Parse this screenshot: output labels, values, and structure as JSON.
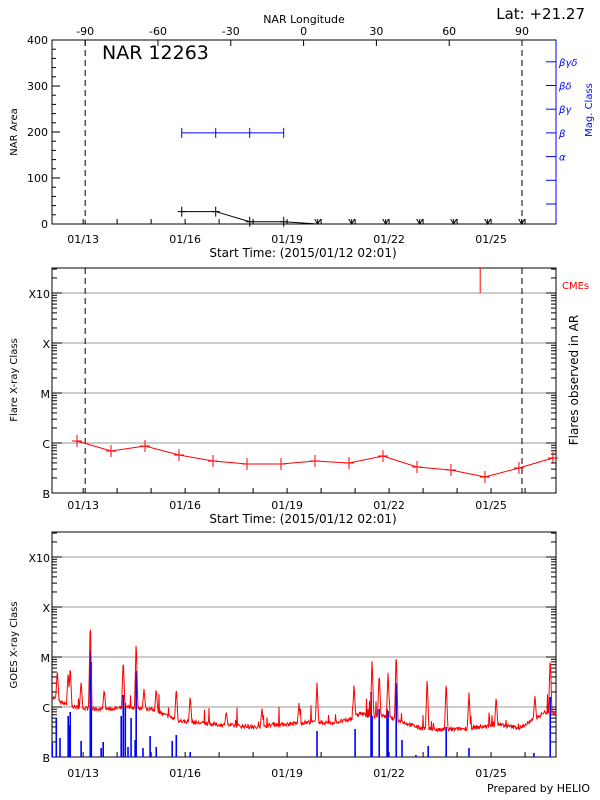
{
  "chart_data": [
    {
      "type": "line",
      "title": "NAR 12263",
      "lat_label": "Lat: +21.27",
      "top_axis_title": "NAR Longitude",
      "longitude_ticks": [
        "-90",
        "-60",
        "-30",
        "0",
        "30",
        "60",
        "90"
      ],
      "longitude_values": [
        -90,
        -60,
        -30,
        0,
        30,
        60,
        90
      ],
      "xlabel": "Start Time: (2015/01/12 02:01)",
      "x_tick_labels": [
        "01/13",
        "01/16",
        "01/19",
        "01/22",
        "01/25"
      ],
      "x_tick_days": [
        13,
        16,
        19,
        22,
        25
      ],
      "xlim_days": [
        12.084,
        26.91
      ],
      "limb_days": [
        13.06,
        25.91
      ],
      "ylabel": "NAR Area",
      "ylim": [
        0,
        400
      ],
      "y_tick_labels": [
        "0",
        "100",
        "200",
        "300",
        "400"
      ],
      "y_tick_values": [
        0,
        100,
        200,
        300,
        400
      ],
      "right_ylabel": "Mag. Class",
      "mag_classes": [
        "α",
        "β",
        "βγ",
        "βδ",
        "βγδ"
      ],
      "area_series": {
        "name": "NAR Area",
        "x_days": [
          15.9,
          16.9,
          17.9,
          18.9,
          19.9,
          20.9,
          21.9,
          22.9,
          23.9,
          24.9,
          25.9
        ],
        "values": [
          27,
          27,
          5,
          5,
          0,
          0,
          0,
          0,
          0,
          0,
          0
        ]
      },
      "mag_series": {
        "name": "Mag. Class",
        "x_days": [
          15.9,
          16.9,
          17.9,
          18.9
        ],
        "values": [
          "β",
          "β",
          "β",
          "β"
        ]
      },
      "colors": {
        "area": "#000000",
        "mag": "#0000ff"
      }
    },
    {
      "type": "line",
      "xlabel": "Start Time: (2015/01/12 02:01)",
      "ylabel": "Flare X-ray Class",
      "right_ylabel": "Flares observed in AR",
      "cme_label": "CMEs",
      "y_tick_labels": [
        "B",
        "C",
        "M",
        "X",
        "X10"
      ],
      "y_tick_log_flux": [
        -7,
        -6,
        -5,
        -4,
        -3
      ],
      "ylim_log_flux": [
        -7,
        -2.5
      ],
      "x_tick_labels": [
        "01/13",
        "01/16",
        "01/19",
        "01/22",
        "01/25"
      ],
      "flare_series": {
        "name": "Flare X-ray class",
        "x_days": [
          12.82,
          13.82,
          14.82,
          15.82,
          16.82,
          17.82,
          18.82,
          19.82,
          20.82,
          21.82,
          22.82,
          23.82,
          24.82,
          25.82,
          26.82
        ],
        "log_flux": [
          -5.96,
          -6.16,
          -6.06,
          -6.24,
          -6.36,
          -6.42,
          -6.42,
          -6.36,
          -6.4,
          -6.26,
          -6.48,
          -6.54,
          -6.68,
          -6.5,
          -6.3
        ]
      },
      "cme_days": [
        24.68
      ],
      "colors": {
        "flares": "#ff0000",
        "cme": "#ff0000",
        "grid": "#999999"
      }
    },
    {
      "type": "line",
      "ylabel": "GOES X-ray Class",
      "y_tick_labels": [
        "B",
        "C",
        "M",
        "X",
        "X10"
      ],
      "y_tick_log_flux": [
        -7,
        -6,
        -5,
        -4,
        -3
      ],
      "ylim_log_flux": [
        -7,
        -2.5
      ],
      "x_tick_labels": [
        "01/13",
        "01/16",
        "01/19",
        "01/22",
        "01/25"
      ],
      "goes_baseline": {
        "x_days": [
          12.09,
          12.32,
          12.76,
          13.21,
          13.79,
          14.38,
          14.97,
          15.41,
          15.85,
          16.44,
          17.03,
          17.62,
          18.21,
          18.5,
          19.09,
          19.68,
          20.26,
          20.85,
          21.15,
          21.44,
          21.74,
          22.32,
          22.91,
          23.5,
          24.09,
          24.68,
          25.26,
          25.85,
          26.29,
          26.59,
          26.91
        ],
        "log_flux": [
          -5.8,
          -5.9,
          -6.0,
          -6.04,
          -6.04,
          -6.0,
          -6.04,
          -6.16,
          -6.28,
          -6.32,
          -6.36,
          -6.38,
          -6.42,
          -6.36,
          -6.34,
          -6.3,
          -6.32,
          -6.26,
          -6.12,
          -6.2,
          -6.16,
          -6.28,
          -6.42,
          -6.46,
          -6.44,
          -6.4,
          -6.36,
          -6.42,
          -6.24,
          -6.1,
          -6.12
        ]
      },
      "goes_peaks": {
        "x_days": [
          12.24,
          12.56,
          12.62,
          12.94,
          13.21,
          13.62,
          14.18,
          14.56,
          14.79,
          15.15,
          15.74,
          16.15,
          17.21,
          18.26,
          19.35,
          19.88,
          20.97,
          21.5,
          21.71,
          21.97,
          22.21,
          23.12,
          23.68,
          24.35,
          25.15,
          26.29,
          26.74
        ],
        "log_flux": [
          -5.24,
          -5.28,
          -5.16,
          -5.48,
          -4.22,
          -5.64,
          -5.02,
          -4.64,
          -5.64,
          -5.62,
          -5.6,
          -5.76,
          -6.08,
          -6.02,
          -5.92,
          -5.5,
          -5.54,
          -5.02,
          -5.3,
          -5.28,
          -4.86,
          -5.38,
          -5.46,
          -5.7,
          -5.78,
          -5.76,
          -4.96
        ]
      },
      "flare_bars": {
        "x_days": [
          12.09,
          12.21,
          12.32,
          12.56,
          12.59,
          12.62,
          12.94,
          13.21,
          13.24,
          13.53,
          13.59,
          14.12,
          14.18,
          14.24,
          14.32,
          14.41,
          14.53,
          14.56,
          14.76,
          14.97,
          15.15,
          15.62,
          15.74,
          16.15,
          19.88,
          21.0,
          21.47,
          21.5,
          21.71,
          21.94,
          21.97,
          22.21,
          22.38,
          22.79,
          23.15,
          23.68,
          24.35,
          26.26,
          26.74
        ],
        "log_flux": [
          -6.72,
          -6.22,
          -6.62,
          -6.18,
          -6.36,
          -6.1,
          -6.68,
          -4.86,
          -5.1,
          -6.82,
          -6.7,
          -6.18,
          -5.76,
          -5.92,
          -6.8,
          -6.22,
          -6.66,
          -5.28,
          -6.82,
          -6.58,
          -6.8,
          -6.68,
          -6.56,
          -6.9,
          -6.48,
          -6.44,
          -5.7,
          -6.18,
          -6.04,
          -6.04,
          -6.08,
          -5.52,
          -6.66,
          -6.96,
          -6.78,
          -6.4,
          -6.82,
          -6.92,
          -5.8
        ]
      },
      "footer": "Prepared by HELIO",
      "colors": {
        "goes": "#ff0000",
        "bars": "#0000ff",
        "grid": "#999999"
      }
    }
  ]
}
